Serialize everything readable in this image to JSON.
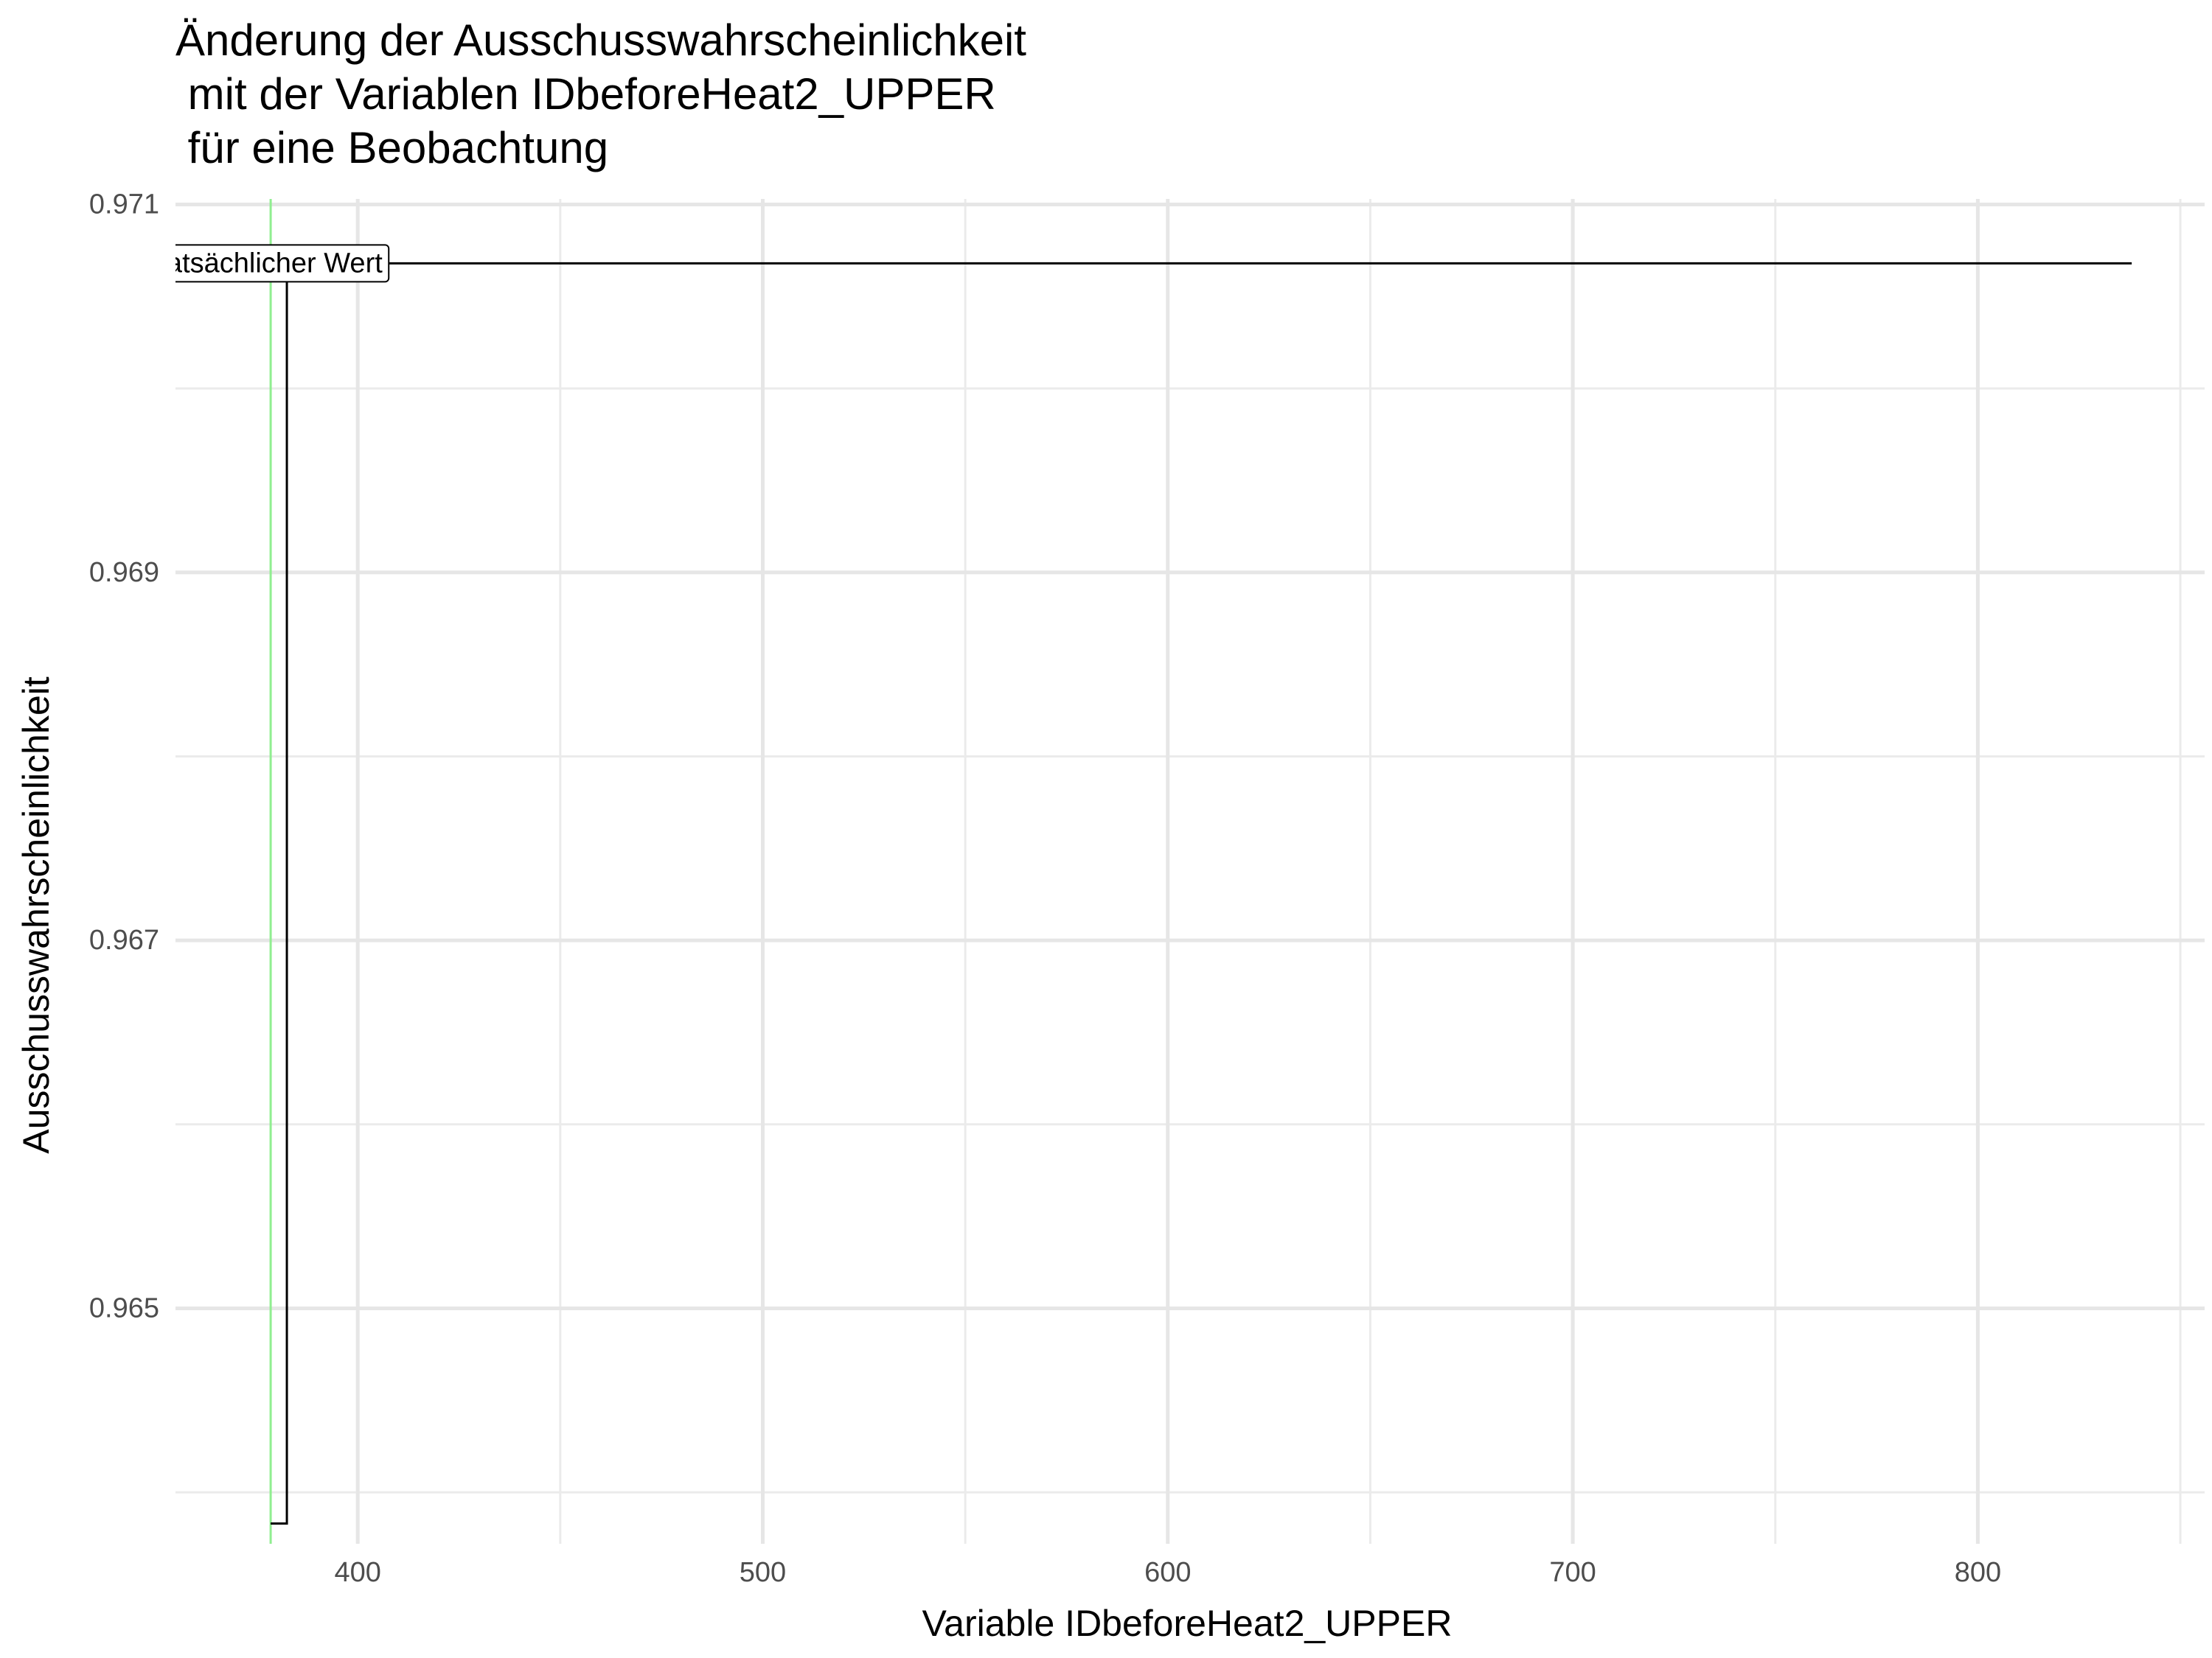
{
  "chart_data": {
    "type": "line",
    "title_lines": [
      "Änderung der Ausschusswahrscheinlichkeit",
      " mit der Variablen IDbeforeHeat2_UPPER",
      " für eine Beobachtung"
    ],
    "xlabel": "Variable IDbeforeHeat2_UPPER",
    "ylabel": "Ausschusswahrscheinlichkeit",
    "xlim": [
      355,
      856
    ],
    "ylim": [
      0.96372,
      0.97103
    ],
    "x_major_ticks": [
      400,
      500,
      600,
      700,
      800
    ],
    "x_tick_labels": [
      "400",
      "500",
      "600",
      "700",
      "800"
    ],
    "x_minor_ticks": [
      450,
      550,
      650,
      750,
      850
    ],
    "y_major_ticks": [
      0.965,
      0.967,
      0.969,
      0.971
    ],
    "y_tick_labels": [
      "0.965",
      "0.967",
      "0.969",
      "0.971"
    ],
    "y_minor_ticks": [
      0.964,
      0.966,
      0.968,
      0.97
    ],
    "grid": true,
    "series": [
      {
        "step": "hv",
        "color": "#000000",
        "x": [
          378.5,
          382.5,
          838
        ],
        "y": [
          0.96383,
          0.97068,
          0.97068
        ]
      }
    ],
    "reference_line": {
      "x": 378.5,
      "color": "#90EE90"
    },
    "annotation": {
      "text": "tatsächlicher Wert",
      "x": 378.5,
      "y": 0.97068
    }
  }
}
